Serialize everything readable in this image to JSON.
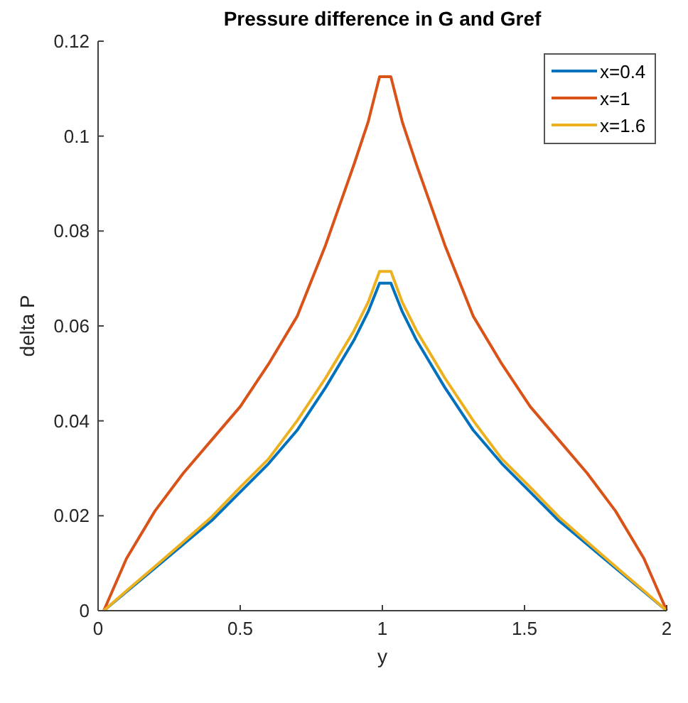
{
  "chart_data": {
    "type": "line",
    "title": "Pressure difference in G and Gref",
    "xlabel": "y",
    "ylabel": "delta P",
    "x": [
      0.02,
      0.1,
      0.2,
      0.3,
      0.4,
      0.5,
      0.6,
      0.7,
      0.8,
      0.9,
      0.95,
      0.99,
      1.03,
      1.07,
      1.12,
      1.22,
      1.32,
      1.42,
      1.52,
      1.62,
      1.72,
      1.82,
      1.92,
      2.0
    ],
    "series": [
      {
        "name": "x=0.4",
        "color": "#0072bd",
        "values": [
          0,
          0.004,
          0.009,
          0.014,
          0.019,
          0.025,
          0.031,
          0.038,
          0.047,
          0.057,
          0.063,
          0.069,
          0.069,
          0.063,
          0.057,
          0.047,
          0.038,
          0.031,
          0.025,
          0.019,
          0.014,
          0.009,
          0.004,
          0
        ]
      },
      {
        "name": "x=1",
        "color": "#d95319",
        "values": [
          0,
          0.011,
          0.021,
          0.029,
          0.036,
          0.043,
          0.052,
          0.062,
          0.077,
          0.094,
          0.103,
          0.1125,
          0.1125,
          0.103,
          0.094,
          0.077,
          0.062,
          0.052,
          0.043,
          0.036,
          0.029,
          0.021,
          0.011,
          0
        ]
      },
      {
        "name": "x=1.6",
        "color": "#edb120",
        "values": [
          0,
          0.0042,
          0.0093,
          0.0145,
          0.0198,
          0.026,
          0.032,
          0.04,
          0.049,
          0.059,
          0.065,
          0.0715,
          0.0715,
          0.065,
          0.059,
          0.049,
          0.04,
          0.032,
          0.026,
          0.0198,
          0.0145,
          0.0093,
          0.0042,
          0
        ]
      }
    ],
    "xlim": [
      0,
      2
    ],
    "xticks": [
      0,
      0.5,
      1,
      1.5,
      2
    ],
    "ylim": [
      0,
      0.12
    ],
    "yticks": [
      0,
      0.02,
      0.04,
      0.06,
      0.08,
      0.1,
      0.12
    ],
    "legend": "top right",
    "grid": false
  }
}
